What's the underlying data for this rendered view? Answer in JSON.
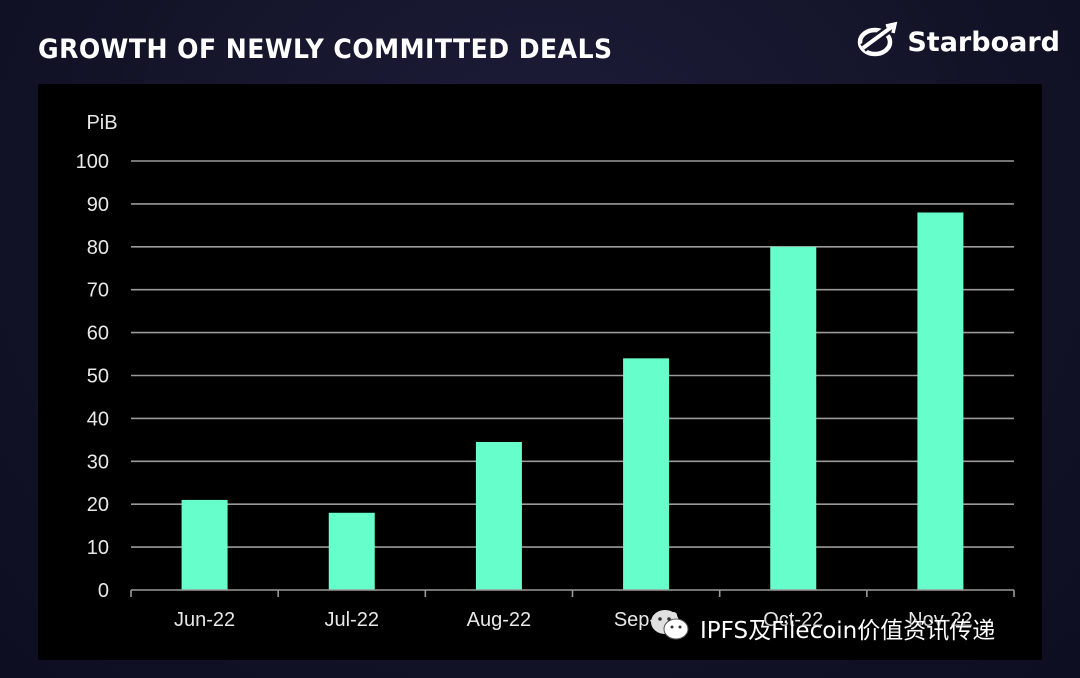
{
  "header": {
    "title": "GROWTH OF NEWLY COMMITTED DEALS"
  },
  "brand": {
    "name": "Starboard",
    "icon": "starboard-logo-icon"
  },
  "watermark": {
    "text": "IPFS及Filecoin价值资讯传递",
    "icon": "wechat-icon"
  },
  "colors": {
    "bar": "#66FFCC",
    "grid": "#9a9a9a",
    "panel": "#000000",
    "text": "#ffffff"
  },
  "chart_data": {
    "type": "bar",
    "title": "GROWTH OF NEWLY COMMITTED DEALS",
    "ylabel": "PiB",
    "xlabel": "",
    "categories": [
      "Jun-22",
      "Jul-22",
      "Aug-22",
      "Sep-22",
      "Oct-22",
      "Nov-22"
    ],
    "values": [
      21,
      18,
      34.5,
      54,
      80,
      88
    ],
    "ylim": [
      0,
      100
    ],
    "yticks": [
      0,
      10,
      20,
      30,
      40,
      50,
      60,
      70,
      80,
      90,
      100
    ],
    "grid": true,
    "legend": "none"
  }
}
